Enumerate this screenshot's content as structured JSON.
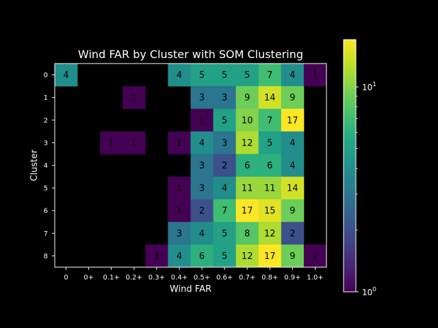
{
  "chart_data": {
    "type": "heatmap",
    "title": "Wind FAR by Cluster with SOM Clustering",
    "xlabel": "Wind FAR",
    "ylabel": "Cluster",
    "x_tick_labels": [
      "0",
      "0+",
      "0.1+",
      "0.2+",
      "0.3+",
      "0.4+",
      "0.5+",
      "0.6+",
      "0.7+",
      "0.8+",
      "0.9+",
      "1.0+"
    ],
    "y_tick_labels": [
      "0",
      "1",
      "2",
      "3",
      "4",
      "5",
      "6",
      "7",
      "8"
    ],
    "values": [
      [
        4,
        null,
        null,
        null,
        null,
        4,
        5,
        5,
        5,
        7,
        4,
        1
      ],
      [
        null,
        null,
        null,
        1,
        null,
        null,
        3,
        3,
        9,
        14,
        9,
        null
      ],
      [
        null,
        null,
        null,
        null,
        null,
        null,
        1,
        5,
        10,
        7,
        17,
        null
      ],
      [
        null,
        null,
        1,
        1,
        null,
        1,
        4,
        3,
        12,
        5,
        4,
        null
      ],
      [
        null,
        null,
        null,
        null,
        null,
        null,
        3,
        2,
        6,
        6,
        4,
        null
      ],
      [
        null,
        null,
        null,
        null,
        null,
        1,
        3,
        4,
        11,
        11,
        14,
        null
      ],
      [
        null,
        null,
        null,
        null,
        null,
        1,
        2,
        7,
        17,
        15,
        9,
        null
      ],
      [
        null,
        null,
        null,
        null,
        null,
        3,
        4,
        5,
        8,
        12,
        2,
        null
      ],
      [
        null,
        null,
        null,
        null,
        1,
        4,
        6,
        5,
        12,
        17,
        9,
        1
      ]
    ],
    "colorscale": "viridis",
    "color_scale_type": "log",
    "clim": [
      1,
      17
    ],
    "colorbar_ticks": [
      {
        "base": "10",
        "exp": "0",
        "value": 1
      },
      {
        "base": "10",
        "exp": "1",
        "value": 10
      }
    ],
    "background": "#000000",
    "text_color": "#ffffff",
    "grid": false
  }
}
